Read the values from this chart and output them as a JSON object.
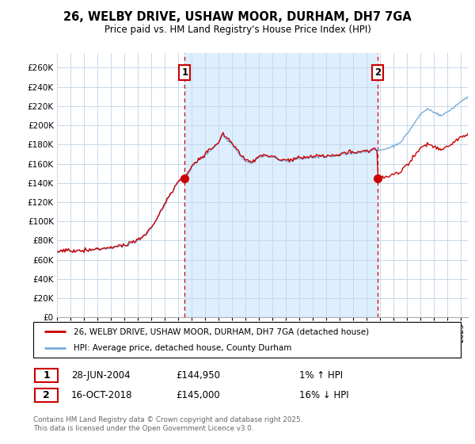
{
  "title": "26, WELBY DRIVE, USHAW MOOR, DURHAM, DH7 7GA",
  "subtitle": "Price paid vs. HM Land Registry's House Price Index (HPI)",
  "ytick_values": [
    0,
    20000,
    40000,
    60000,
    80000,
    100000,
    120000,
    140000,
    160000,
    180000,
    200000,
    220000,
    240000,
    260000
  ],
  "ylim": [
    0,
    275000
  ],
  "sale1_date": "28-JUN-2004",
  "sale1_price": 144950,
  "sale1_hpi_diff": "1% ↑ HPI",
  "sale1_x": 2004.49,
  "sale2_date": "16-OCT-2018",
  "sale2_price": 145000,
  "sale2_hpi_diff": "16% ↓ HPI",
  "sale2_x": 2018.79,
  "legend_line1": "26, WELBY DRIVE, USHAW MOOR, DURHAM, DH7 7GA (detached house)",
  "legend_line2": "HPI: Average price, detached house, County Durham",
  "footer": "Contains HM Land Registry data © Crown copyright and database right 2025.\nThis data is licensed under the Open Government Licence v3.0.",
  "hpi_color": "#7aaddc",
  "price_color": "#cc0000",
  "sale_marker_color": "#cc0000",
  "vline_color": "#cc0000",
  "background_color": "#ffffff",
  "grid_color": "#c8d8e8",
  "fill_color": "#ddeeff",
  "xmin": 1995,
  "xmax": 2025.5
}
